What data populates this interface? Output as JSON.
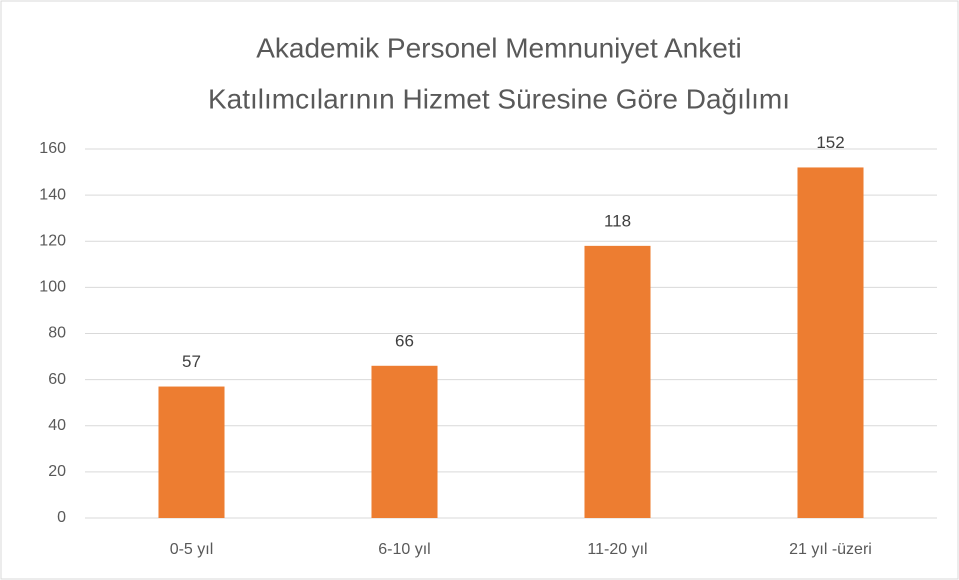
{
  "chart_data": {
    "type": "bar",
    "title": [
      "Akademik Personel Memnuniyet Anketi",
      "Katılımcılarının Hizmet Süresine Göre Dağılımı"
    ],
    "categories": [
      "0-5 yıl",
      "6-10 yıl",
      "11-20 yıl",
      "21 yıl -üzeri"
    ],
    "values": [
      57,
      66,
      118,
      152
    ],
    "color": "#ed7d31",
    "ylim": [
      0,
      160
    ],
    "yticks": [
      0,
      20,
      40,
      60,
      80,
      100,
      120,
      140,
      160
    ],
    "grid": true
  }
}
